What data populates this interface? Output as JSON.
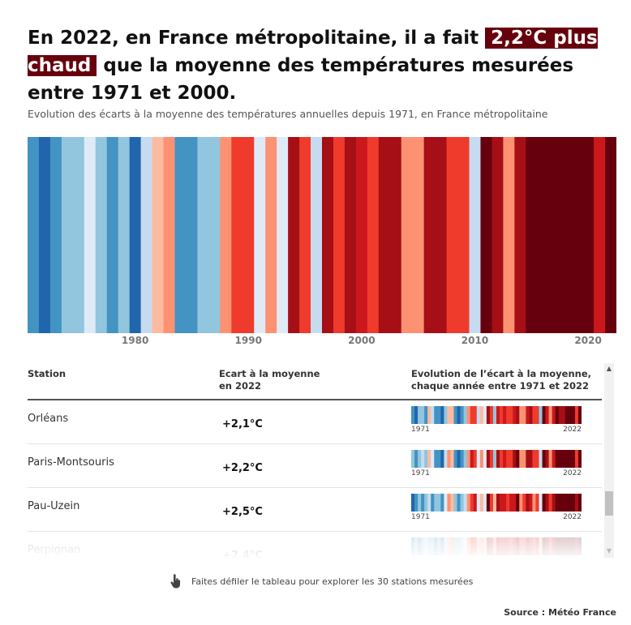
{
  "title": {
    "before": "En 2022, en France métropolitaine, il a fait ",
    "highlight": "2,2°C plus chaud",
    "after": " que la moyenne des températures mesurées entre 1971 et 2000."
  },
  "subtitle": "Evolution des écarts à la moyenne des températures annuelles depuis 1971, en France métropolitaine",
  "colors": {
    "highlight_bg": "#67000d",
    "cold_strong": "#2166ac",
    "cold": "#4393c3",
    "cool": "#92c5de",
    "cool_light": "#c6dbef",
    "neutral": "#deebf7",
    "warm_light": "#fcbba1",
    "warm": "#fc9272",
    "hot": "#ef3b2c",
    "hotter": "#cb181d",
    "hottest": "#a50f15",
    "extreme": "#67000d"
  },
  "chart_data": {
    "type": "heatmap",
    "title": "",
    "x_start": 1971,
    "x_end": 2022,
    "x_ticks": [
      "1980",
      "1990",
      "2000",
      "2010",
      "2020"
    ],
    "values": [
      -0.6,
      -0.8,
      -0.6,
      -0.3,
      -0.3,
      -0.1,
      -0.3,
      -0.6,
      -0.4,
      -0.8,
      -0.2,
      0.2,
      0.3,
      -0.5,
      -0.6,
      -0.4,
      -0.4,
      0.5,
      1.0,
      1.0,
      -0.1,
      0.3,
      0.0,
      1.5,
      1.0,
      -0.2,
      1.3,
      1.0,
      1.3,
      1.1,
      1.0,
      1.3,
      1.5,
      0.6,
      0.6,
      1.3,
      1.3,
      0.9,
      1.0,
      -0.2,
      1.7,
      1.3,
      0.6,
      1.3,
      1.8,
      1.7,
      1.7,
      2.0,
      1.8,
      1.8,
      1.1,
      2.2
    ]
  },
  "table": {
    "headers": [
      "Station",
      "Ecart à la moyenne en 2022",
      "Evolution de l’écart à la moyenne, chaque année entre 1971 et 2022"
    ],
    "rows": [
      {
        "station": "Orléans",
        "value": "+2,1°C",
        "year_start": "1971",
        "year_end": "2022",
        "stripes": [
          -0.5,
          -0.7,
          -0.4,
          -0.3,
          -0.5,
          0.1,
          -0.2,
          -0.5,
          -0.6,
          -0.8,
          -0.3,
          0.1,
          0.2,
          -0.6,
          -0.7,
          -0.5,
          -0.3,
          0.4,
          1.0,
          0.9,
          -0.2,
          0.2,
          -0.1,
          1.3,
          0.9,
          -0.4,
          1.2,
          0.8,
          1.2,
          0.9,
          0.8,
          1.2,
          1.4,
          0.5,
          0.4,
          1.2,
          1.3,
          0.8,
          0.9,
          -0.3,
          1.6,
          1.2,
          0.4,
          1.1,
          1.6,
          1.4,
          1.5,
          1.9,
          1.7,
          1.7,
          0.9,
          2.1
        ]
      },
      {
        "station": "Paris-Montsouris",
        "value": "+2,2°C",
        "year_start": "1971",
        "year_end": "2022",
        "stripes": [
          -0.4,
          -0.6,
          -0.3,
          -0.2,
          -0.4,
          0.2,
          -0.1,
          -0.6,
          -0.5,
          -0.7,
          -0.2,
          0.3,
          0.2,
          -0.5,
          -0.8,
          -0.6,
          -0.3,
          0.5,
          1.1,
          1.0,
          -0.1,
          0.3,
          0.0,
          1.4,
          1.0,
          -0.3,
          1.3,
          0.9,
          1.2,
          1.0,
          0.9,
          1.3,
          1.6,
          0.6,
          0.5,
          1.3,
          1.4,
          0.9,
          1.0,
          -0.2,
          1.7,
          1.4,
          0.5,
          1.2,
          1.8,
          1.6,
          1.6,
          2.0,
          1.9,
          1.9,
          1.0,
          2.2
        ]
      },
      {
        "station": "Pau-Uzein",
        "value": "+2,5°C",
        "year_start": "1971",
        "year_end": "2022",
        "stripes": [
          -0.8,
          -0.5,
          -0.4,
          -0.5,
          -0.3,
          -0.2,
          -0.6,
          -0.4,
          -0.3,
          -0.6,
          -0.1,
          0.3,
          0.1,
          -0.4,
          -0.5,
          -0.3,
          -0.2,
          0.6,
          0.9,
          1.1,
          0.0,
          0.2,
          -0.1,
          1.6,
          0.8,
          0.1,
          1.4,
          1.1,
          1.2,
          1.0,
          1.1,
          1.2,
          1.7,
          0.7,
          0.8,
          1.4,
          1.1,
          0.7,
          1.0,
          0.0,
          1.8,
          1.3,
          0.8,
          1.4,
          1.9,
          1.7,
          1.6,
          2.1,
          2.0,
          1.8,
          1.3,
          2.5
        ]
      },
      {
        "station": "Perpignan",
        "value": "+2,4°C",
        "year_start": "1971",
        "year_end": "2022",
        "stripes": [
          -0.6,
          -0.4,
          -0.5,
          -0.3,
          -0.2,
          -0.4,
          -0.3,
          -0.5,
          -0.4,
          -0.6,
          -0.2,
          0.2,
          0.3,
          -0.3,
          -0.4,
          -0.2,
          -0.1,
          0.7,
          1.0,
          1.0,
          0.1,
          0.4,
          0.2,
          1.5,
          1.1,
          0.3,
          1.3,
          1.2,
          1.1,
          1.2,
          1.0,
          1.1,
          1.8,
          0.9,
          0.9,
          1.3,
          1.2,
          0.8,
          1.1,
          0.2,
          1.7,
          1.4,
          1.0,
          1.5,
          2.0,
          1.8,
          1.7,
          2.2,
          2.1,
          1.9,
          1.5,
          2.4
        ]
      }
    ]
  },
  "hint": "Faites défiler le tableau pour explorer les 30 stations mesurées",
  "source": "Source : Météo France",
  "icons": {
    "scroll_up": "▲",
    "scroll_down": "▼"
  }
}
